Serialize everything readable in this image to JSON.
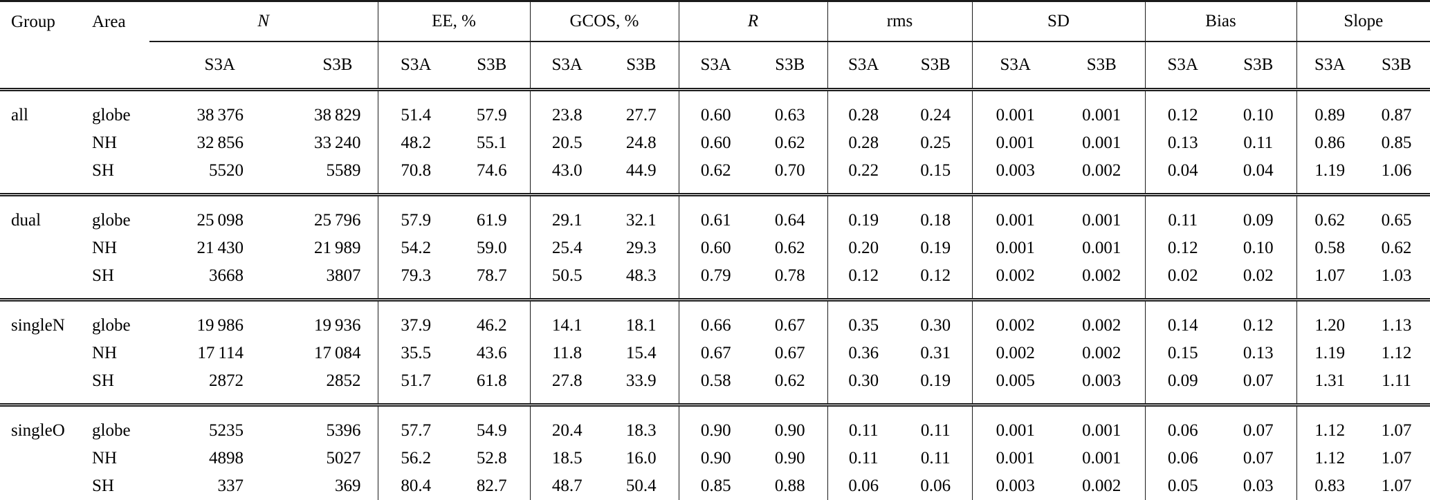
{
  "table": {
    "row_header_columns": [
      "Group",
      "Area"
    ],
    "satellite_columns": [
      "S3A",
      "S3B"
    ],
    "measure_groups": [
      {
        "id": "n",
        "label": "N",
        "italic": true
      },
      {
        "id": "ee-pct",
        "label": "EE, %",
        "italic": false
      },
      {
        "id": "gcos-pct",
        "label": "GCOS, %",
        "italic": false
      },
      {
        "id": "r",
        "label": "R",
        "italic": true
      },
      {
        "id": "rms",
        "label": "rms",
        "italic": false
      },
      {
        "id": "sd",
        "label": "SD",
        "italic": false
      },
      {
        "id": "bias",
        "label": "Bias",
        "italic": false
      },
      {
        "id": "slope",
        "label": "Slope",
        "italic": false
      }
    ],
    "groups": [
      {
        "group": "all",
        "rows": [
          {
            "area": "globe",
            "values": [
              "38 376",
              "38 829",
              "51.4",
              "57.9",
              "23.8",
              "27.7",
              "0.60",
              "0.63",
              "0.28",
              "0.24",
              "0.001",
              "0.001",
              "0.12",
              "0.10",
              "0.89",
              "0.87"
            ]
          },
          {
            "area": "NH",
            "values": [
              "32 856",
              "33 240",
              "48.2",
              "55.1",
              "20.5",
              "24.8",
              "0.60",
              "0.62",
              "0.28",
              "0.25",
              "0.001",
              "0.001",
              "0.13",
              "0.11",
              "0.86",
              "0.85"
            ]
          },
          {
            "area": "SH",
            "values": [
              "5520",
              "5589",
              "70.8",
              "74.6",
              "43.0",
              "44.9",
              "0.62",
              "0.70",
              "0.22",
              "0.15",
              "0.003",
              "0.002",
              "0.04",
              "0.04",
              "1.19",
              "1.06"
            ]
          }
        ]
      },
      {
        "group": "dual",
        "rows": [
          {
            "area": "globe",
            "values": [
              "25 098",
              "25 796",
              "57.9",
              "61.9",
              "29.1",
              "32.1",
              "0.61",
              "0.64",
              "0.19",
              "0.18",
              "0.001",
              "0.001",
              "0.11",
              "0.09",
              "0.62",
              "0.65"
            ]
          },
          {
            "area": "NH",
            "values": [
              "21 430",
              "21 989",
              "54.2",
              "59.0",
              "25.4",
              "29.3",
              "0.60",
              "0.62",
              "0.20",
              "0.19",
              "0.001",
              "0.001",
              "0.12",
              "0.10",
              "0.58",
              "0.62"
            ]
          },
          {
            "area": "SH",
            "values": [
              "3668",
              "3807",
              "79.3",
              "78.7",
              "50.5",
              "48.3",
              "0.79",
              "0.78",
              "0.12",
              "0.12",
              "0.002",
              "0.002",
              "0.02",
              "0.02",
              "1.07",
              "1.03"
            ]
          }
        ]
      },
      {
        "group": "singleN",
        "rows": [
          {
            "area": "globe",
            "values": [
              "19 986",
              "19 936",
              "37.9",
              "46.2",
              "14.1",
              "18.1",
              "0.66",
              "0.67",
              "0.35",
              "0.30",
              "0.002",
              "0.002",
              "0.14",
              "0.12",
              "1.20",
              "1.13"
            ]
          },
          {
            "area": "NH",
            "values": [
              "17 114",
              "17 084",
              "35.5",
              "43.6",
              "11.8",
              "15.4",
              "0.67",
              "0.67",
              "0.36",
              "0.31",
              "0.002",
              "0.002",
              "0.15",
              "0.13",
              "1.19",
              "1.12"
            ]
          },
          {
            "area": "SH",
            "values": [
              "2872",
              "2852",
              "51.7",
              "61.8",
              "27.8",
              "33.9",
              "0.58",
              "0.62",
              "0.30",
              "0.19",
              "0.005",
              "0.003",
              "0.09",
              "0.07",
              "1.31",
              "1.11"
            ]
          }
        ]
      },
      {
        "group": "singleO",
        "rows": [
          {
            "area": "globe",
            "values": [
              "5235",
              "5396",
              "57.7",
              "54.9",
              "20.4",
              "18.3",
              "0.90",
              "0.90",
              "0.11",
              "0.11",
              "0.001",
              "0.001",
              "0.06",
              "0.07",
              "1.12",
              "1.07"
            ]
          },
          {
            "area": "NH",
            "values": [
              "4898",
              "5027",
              "56.2",
              "52.8",
              "18.5",
              "16.0",
              "0.90",
              "0.90",
              "0.11",
              "0.11",
              "0.001",
              "0.001",
              "0.06",
              "0.07",
              "1.12",
              "1.07"
            ]
          },
          {
            "area": "SH",
            "values": [
              "337",
              "369",
              "80.4",
              "82.7",
              "48.7",
              "50.4",
              "0.85",
              "0.88",
              "0.06",
              "0.06",
              "0.003",
              "0.002",
              "0.05",
              "0.03",
              "0.83",
              "1.07"
            ]
          }
        ]
      }
    ]
  }
}
